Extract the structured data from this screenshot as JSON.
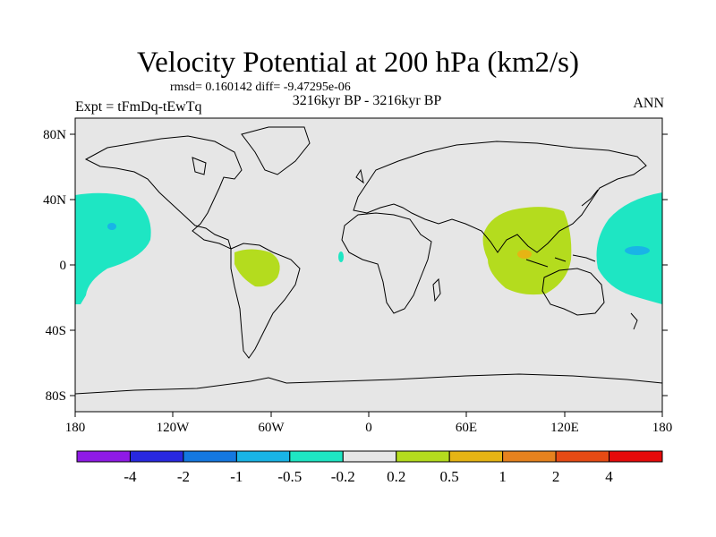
{
  "title": "Velocity Potential at 200 hPa (km2/s)",
  "stats": "rmsd= 0.160142 diff= -9.47295e-06",
  "period": "3216kyr BP - 3216kyr BP",
  "experiment": "Expt = tFmDq-tEwTq",
  "season": "ANN",
  "lat_labels": [
    "80N",
    "40N",
    "0",
    "40S",
    "80S"
  ],
  "lon_labels": [
    "180",
    "120W",
    "60W",
    "0",
    "60E",
    "120E",
    "180"
  ],
  "colorbar": {
    "colors": [
      "#8f1ae6",
      "#2828e0",
      "#1478e0",
      "#19b4e6",
      "#1ee6c3",
      "#e6e6e6",
      "#b4dc1e",
      "#e6b414",
      "#e6821e",
      "#e64b14",
      "#e60a0a"
    ],
    "labels": [
      "-4",
      "-2",
      "-1",
      "-0.5",
      "-0.2",
      "0.2",
      "0.5",
      "1",
      "2",
      "4"
    ]
  },
  "colors": {
    "background": "#e6e6e6",
    "positive_0_2": "#b4dc1e",
    "positive_1": "#e6b414",
    "negative_0_2": "#1ee6c3",
    "negative_0_5": "#19b4e6"
  }
}
